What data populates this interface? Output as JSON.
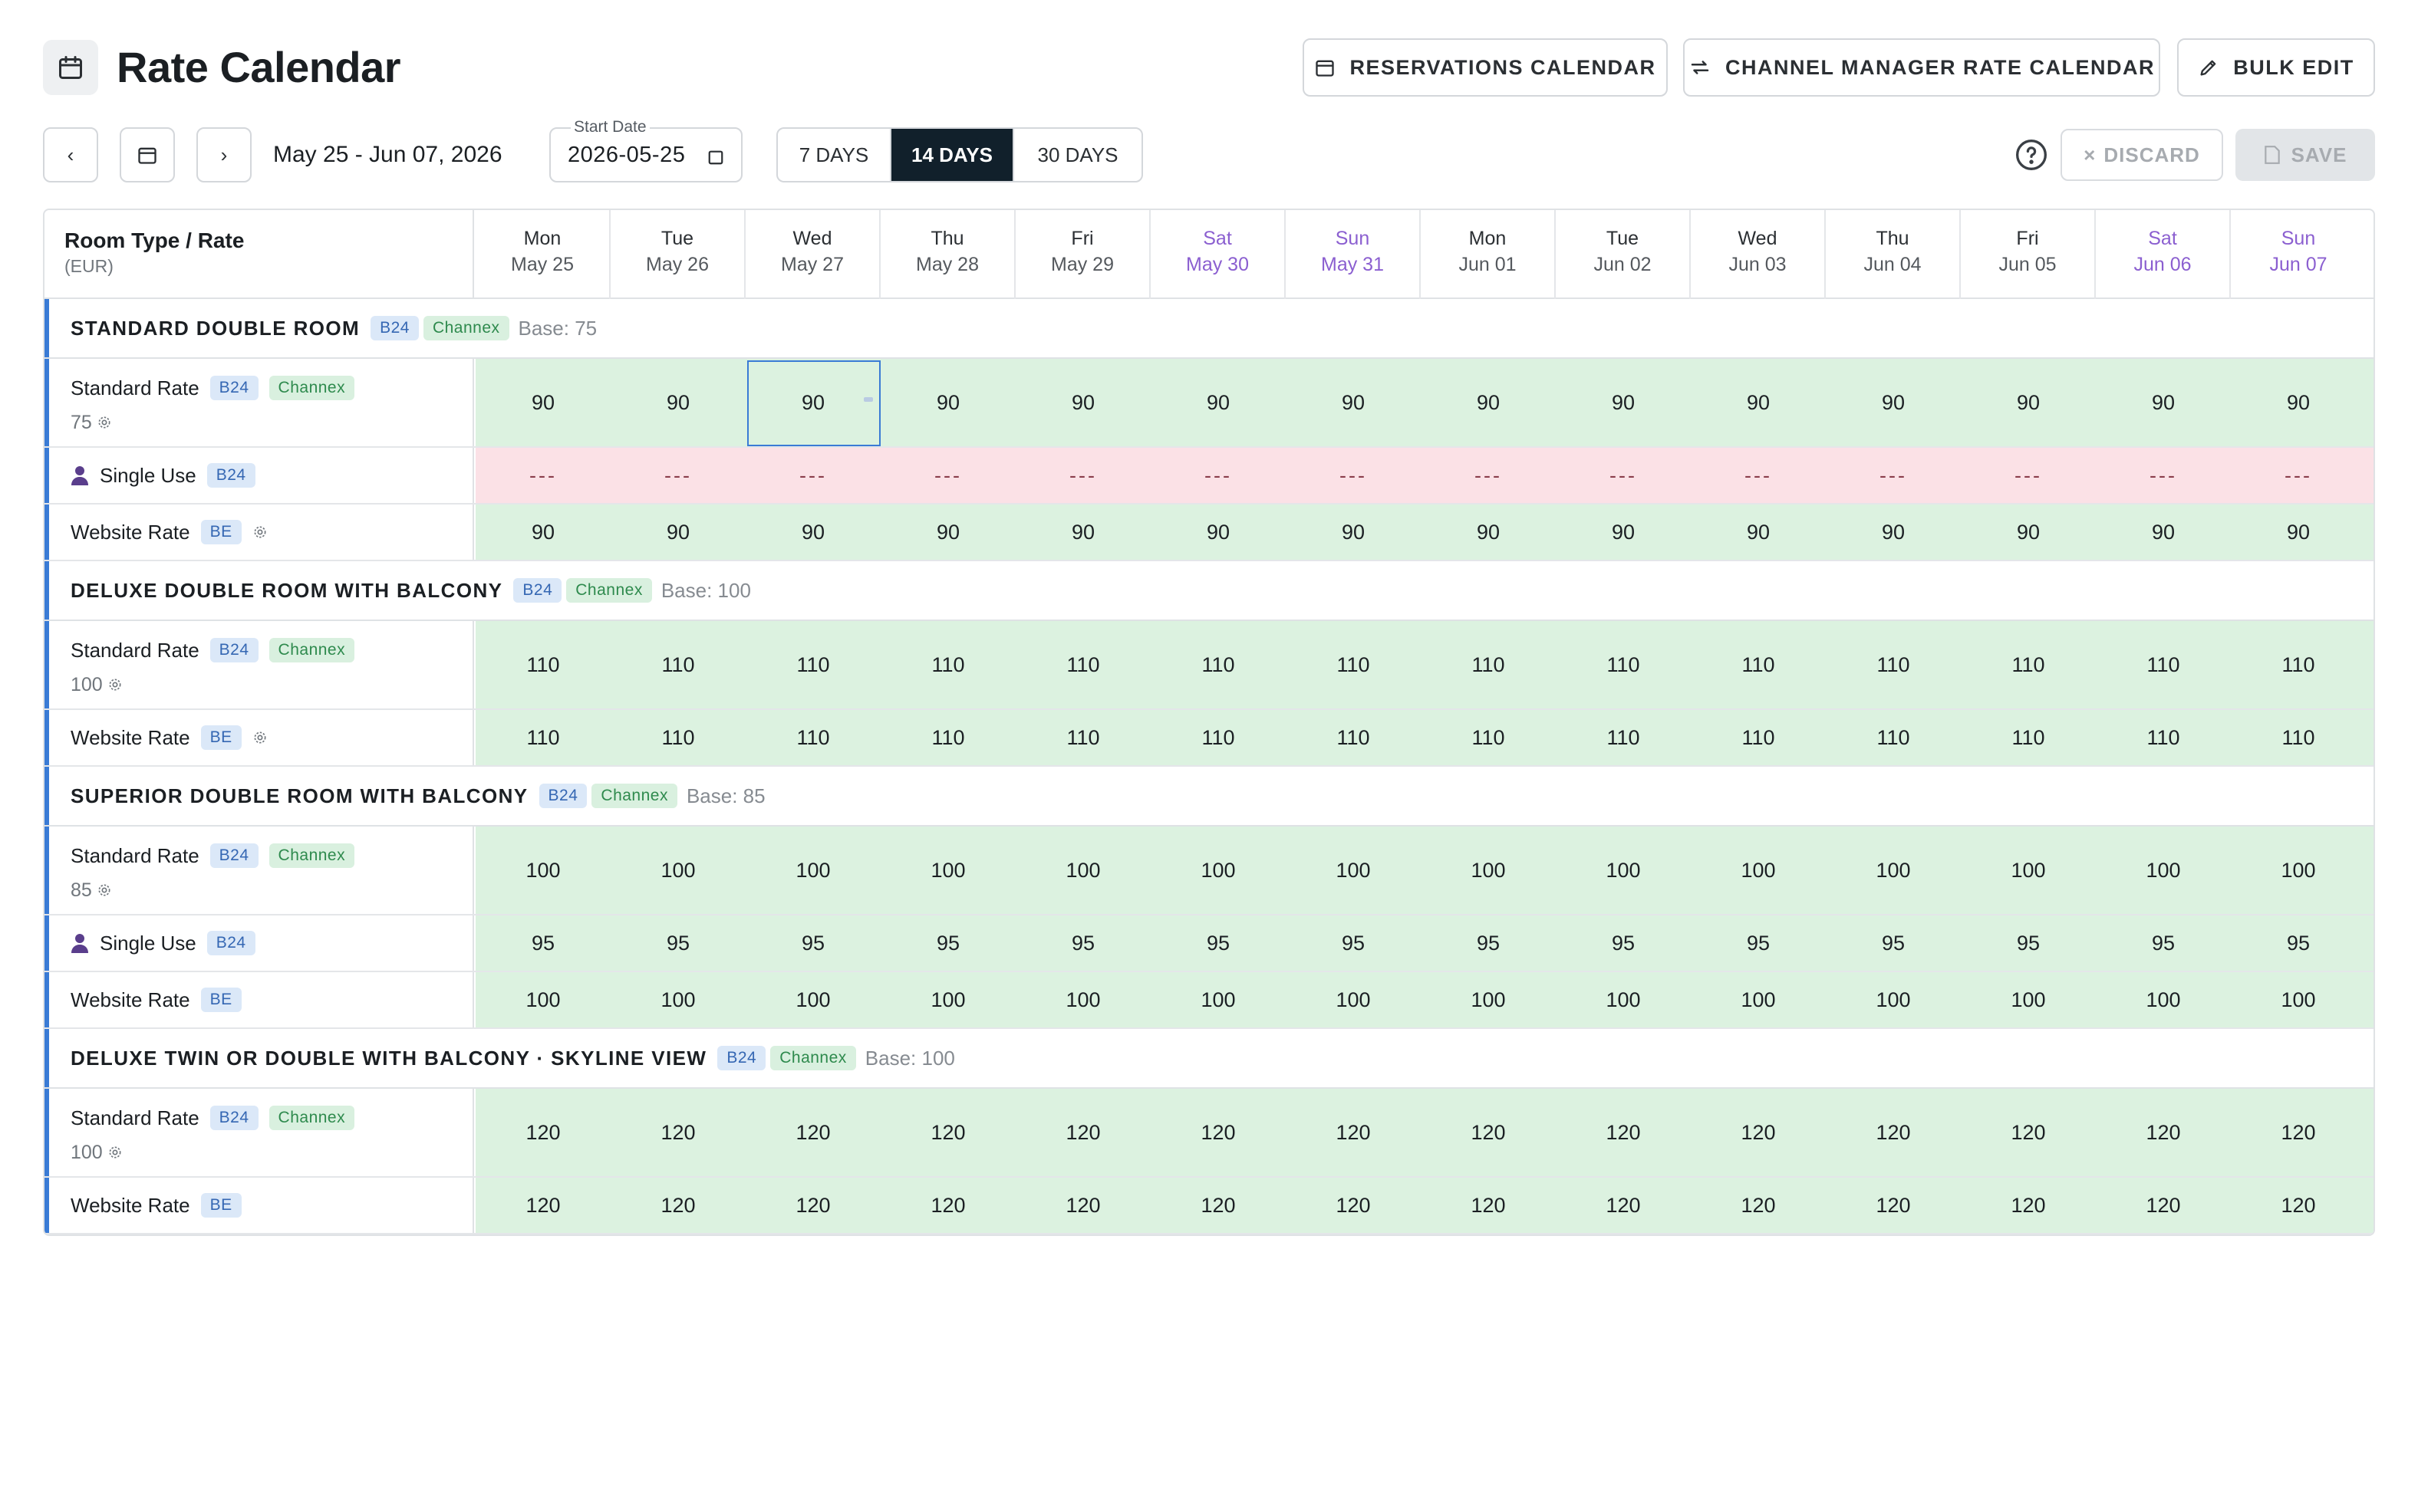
{
  "header": {
    "title": "Rate Calendar",
    "title_icon": "calendar-icon",
    "buttons": {
      "reservations": "RESERVATIONS CALENDAR",
      "channel_manager": "CHANNEL MANAGER RATE CALENDAR",
      "bulk_edit": "BULK EDIT"
    }
  },
  "toolbar": {
    "date_range": "May 25 - Jun 07, 2026",
    "start_date_label": "Start Date",
    "start_date_value": "2026-05-25",
    "range_options": [
      "7 DAYS",
      "14 DAYS",
      "30 DAYS"
    ],
    "selected_range": "14 DAYS",
    "discard_label": "DISCARD",
    "save_label": "SAVE"
  },
  "grid": {
    "corner_title": "Room Type / Rate",
    "corner_currency": "(EUR)",
    "days": [
      {
        "name": "Mon",
        "date": "May 25",
        "weekend": false
      },
      {
        "name": "Tue",
        "date": "May 26",
        "weekend": false
      },
      {
        "name": "Wed",
        "date": "May 27",
        "weekend": false
      },
      {
        "name": "Thu",
        "date": "May 28",
        "weekend": false
      },
      {
        "name": "Fri",
        "date": "May 29",
        "weekend": false
      },
      {
        "name": "Sat",
        "date": "May 30",
        "weekend": true
      },
      {
        "name": "Sun",
        "date": "May 31",
        "weekend": true
      },
      {
        "name": "Mon",
        "date": "Jun 01",
        "weekend": false
      },
      {
        "name": "Tue",
        "date": "Jun 02",
        "weekend": false
      },
      {
        "name": "Wed",
        "date": "Jun 03",
        "weekend": false
      },
      {
        "name": "Thu",
        "date": "Jun 04",
        "weekend": false
      },
      {
        "name": "Fri",
        "date": "Jun 05",
        "weekend": false
      },
      {
        "name": "Sat",
        "date": "Jun 06",
        "weekend": true
      },
      {
        "name": "Sun",
        "date": "Jun 07",
        "weekend": true
      }
    ],
    "badges": {
      "b24": "B24",
      "channex": "Channex",
      "be": "BE"
    },
    "colors": {
      "available": "#dcf2e0",
      "closed": "#fbe1e6",
      "accent": "#3a7bd5",
      "weekend": "#8b5fd0"
    },
    "sections": [
      {
        "name": "STANDARD DOUBLE ROOM",
        "base": "Base: 75",
        "rates": [
          {
            "label": "Standard Rate",
            "badges": [
              "B24",
              "Channex"
            ],
            "sub": "75",
            "value": "90",
            "status": "available"
          },
          {
            "label": "Single Use",
            "badges": [
              "B24"
            ],
            "icon": "person-icon",
            "value": "---",
            "status": "closed"
          },
          {
            "label": "Website Rate",
            "badges": [
              "BE"
            ],
            "gear": true,
            "value": "90",
            "status": "available"
          }
        ]
      },
      {
        "name": "DELUXE DOUBLE ROOM WITH BALCONY",
        "base": "Base: 100",
        "rates": [
          {
            "label": "Standard Rate",
            "badges": [
              "B24",
              "Channex"
            ],
            "sub": "100",
            "value": "110",
            "status": "available"
          },
          {
            "label": "Website Rate",
            "badges": [
              "BE"
            ],
            "gear": true,
            "value": "110",
            "status": "available"
          }
        ]
      },
      {
        "name": "SUPERIOR DOUBLE ROOM WITH BALCONY",
        "base": "Base: 85",
        "rates": [
          {
            "label": "Standard Rate",
            "badges": [
              "B24",
              "Channex"
            ],
            "sub": "85",
            "value": "100",
            "status": "available"
          },
          {
            "label": "Single Use",
            "badges": [
              "B24"
            ],
            "icon": "person-icon",
            "value": "95",
            "status": "available"
          },
          {
            "label": "Website Rate",
            "badges": [
              "BE"
            ],
            "gear": false,
            "value": "100",
            "status": "available"
          }
        ]
      },
      {
        "name": "DELUXE TWIN OR DOUBLE WITH BALCONY · SKYLINE VIEW",
        "base": "Base: 100",
        "rates": [
          {
            "label": "Standard Rate",
            "badges": [
              "B24",
              "Channex"
            ],
            "sub": "100",
            "value": "120",
            "status": "available"
          },
          {
            "label": "Website Rate",
            "badges": [
              "BE"
            ],
            "gear": false,
            "value": "120",
            "status": "available"
          }
        ]
      }
    ]
  }
}
